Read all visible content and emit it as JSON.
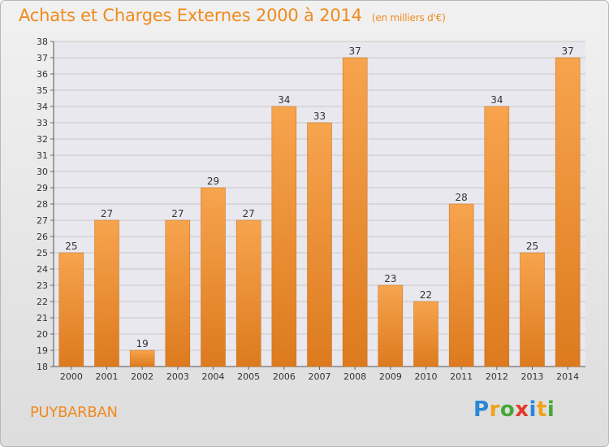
{
  "header": {
    "title": "Achats et Charges Externes 2000 à 2014",
    "unit": "(en milliers d'€)"
  },
  "footer": {
    "commune": "PUYBARBAN",
    "logo_text": "Proxiti",
    "logo_letters": [
      "P",
      "r",
      "o",
      "x",
      "i",
      "t",
      "i"
    ],
    "logo_colors": [
      "#2a86d6",
      "#f0a21a",
      "#46a83a",
      "#e23a2b",
      "#2a86d6",
      "#f0a21a",
      "#46a83a"
    ]
  },
  "chart_data": {
    "type": "bar",
    "title": "Achats et Charges Externes 2000 à 2014",
    "subtitle": "(en milliers d'€)",
    "categories": [
      "2000",
      "2001",
      "2002",
      "2003",
      "2004",
      "2005",
      "2006",
      "2007",
      "2008",
      "2009",
      "2010",
      "2011",
      "2012",
      "2013",
      "2014"
    ],
    "values": [
      25,
      27,
      19,
      27,
      29,
      27,
      34,
      33,
      37,
      23,
      22,
      28,
      34,
      25,
      37
    ],
    "ylim": [
      18,
      38
    ],
    "yticks": [
      18,
      19,
      20,
      21,
      22,
      23,
      24,
      25,
      26,
      27,
      28,
      29,
      30,
      31,
      32,
      33,
      34,
      35,
      36,
      37,
      38
    ],
    "grid": true,
    "colors": {
      "bar_light": "#f7a44e",
      "bar_dark": "#dd7a1e",
      "grid": "#c8c8c8",
      "plot_bg": "#e8e8ee"
    }
  }
}
